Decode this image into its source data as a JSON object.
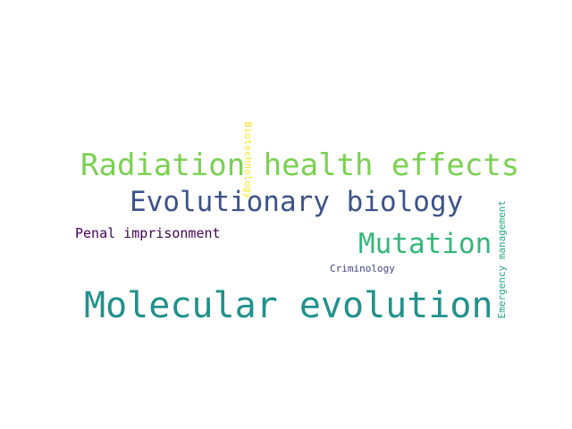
{
  "words": [
    {
      "text": "Radiation health effects",
      "color": "#7ad151"
    },
    {
      "text": "Evolutionary biology",
      "color": "#3b528b"
    },
    {
      "text": "Penal imprisonment",
      "color": "#440154"
    },
    {
      "text": "Mutation",
      "color": "#35b779"
    },
    {
      "text": "Criminology",
      "color": "#414487"
    },
    {
      "text": "Molecular evolution",
      "color": "#21918c"
    },
    {
      "text": "Biotechnology",
      "color": "#fde725"
    },
    {
      "text": "Emergency management",
      "color": "#22a884"
    }
  ]
}
